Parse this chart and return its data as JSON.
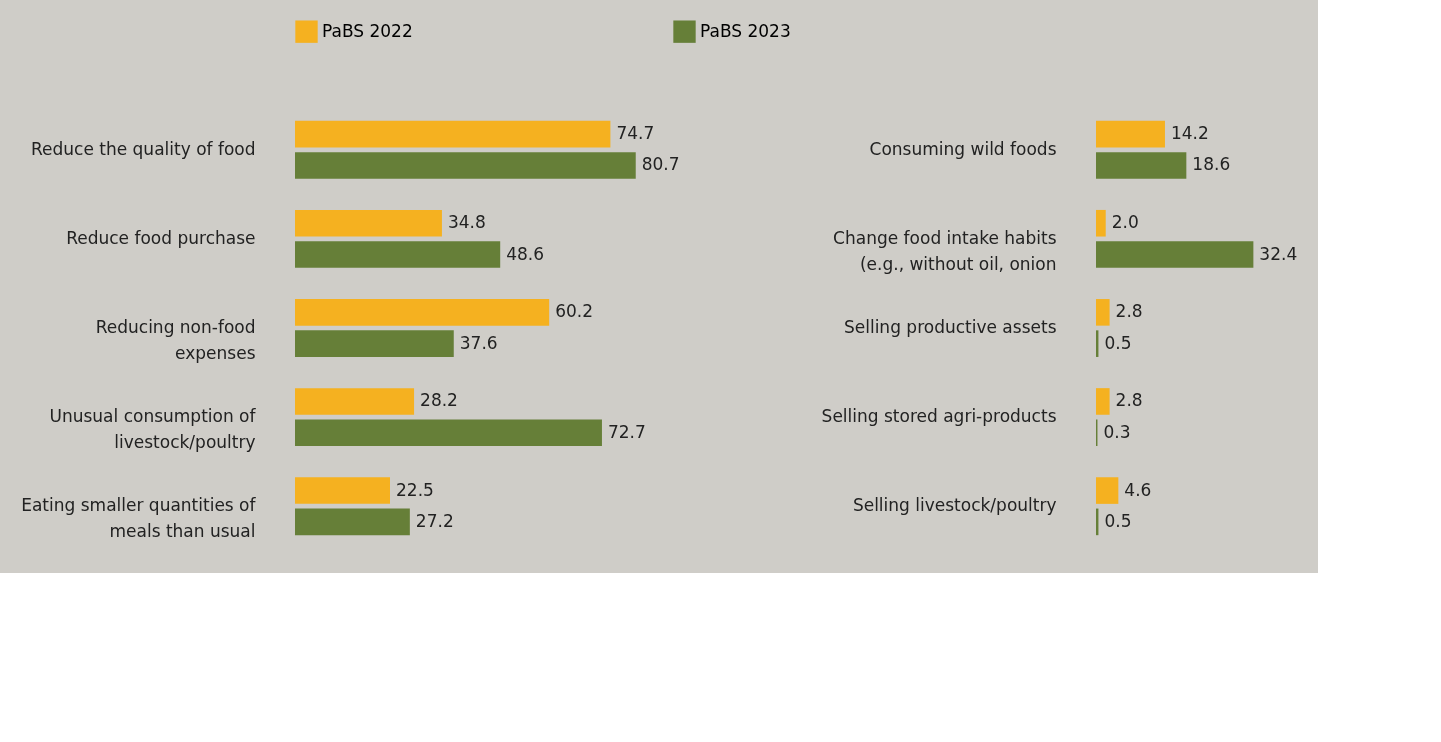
{
  "chart_data": [
    {
      "type": "bar",
      "orientation": "horizontal",
      "legend": "top",
      "tick_labels": "y",
      "categories": [
        "Reduce the quality of food",
        "Reduce food purchase",
        "Reducing non-food\nexpenses",
        "Unusual consumption of\nlivestock/poultry",
        "Eating smaller quantities of\nmeals than usual"
      ],
      "series": [
        {
          "name": "PaBS 2022",
          "color": "#f5b120",
          "values": [
            74.7,
            34.8,
            60.2,
            28.2,
            22.5
          ],
          "value_labels": [
            "74.7",
            "34.8",
            "60.2",
            "28.2",
            "22.5"
          ]
        },
        {
          "name": "PaBS 2023",
          "color": "#667f38",
          "values": [
            80.7,
            48.6,
            37.6,
            72.7,
            27.2
          ],
          "value_labels": [
            "80.7",
            "48.6",
            "37.6",
            "72.7",
            "27.2"
          ]
        }
      ]
    },
    {
      "type": "bar",
      "orientation": "horizontal",
      "tick_labels": "y",
      "categories": [
        "Consuming wild foods",
        "Change food intake habits\n(e.g., without oil, onion",
        "Selling productive assets",
        "Selling stored agri-products",
        "Selling livestock/poultry"
      ],
      "series": [
        {
          "color": "#f5b120",
          "values": [
            14.2,
            2.0,
            2.8,
            2.8,
            4.6
          ],
          "value_labels": [
            "14.2",
            "2.0",
            "2.8",
            "2.8",
            "4.6"
          ]
        },
        {
          "color": "#667f38",
          "values": [
            18.6,
            32.4,
            0.5,
            0.3,
            0.5
          ],
          "value_labels": [
            "18.6",
            "32.4",
            "0.5",
            "0.3",
            "0.5"
          ]
        }
      ]
    }
  ]
}
